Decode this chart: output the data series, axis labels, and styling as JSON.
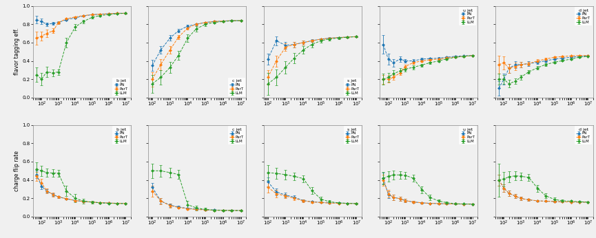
{
  "colors": {
    "PN": "#1f77b4",
    "ParT": "#ff7f0e",
    "LLM": "#2ca02c"
  },
  "series": [
    "PN",
    "ParT",
    "LLM"
  ],
  "col_labels": [
    "b jet",
    "c jet",
    "s jet",
    "u jet",
    "d jet"
  ],
  "row0_ylabel": "flavor tagging eff.",
  "row1_ylabel": "charge flip rate",
  "ylim": [
    0.0,
    1.0
  ],
  "yticks": [
    0.0,
    0.2,
    0.4,
    0.6,
    0.8,
    1.0
  ],
  "top_legend_locs": [
    "lower right",
    "lower right",
    "lower right",
    "upper right",
    "upper right"
  ],
  "bot_legend_locs": [
    "upper right",
    "upper right",
    "upper right",
    "upper right",
    "upper right"
  ],
  "top_data": {
    "b jet": {
      "x": [
        50,
        100,
        200,
        500,
        1000,
        3000,
        10000,
        30000,
        100000,
        300000,
        1000000,
        3000000,
        10000000
      ],
      "PN": [
        0.85,
        0.83,
        0.8,
        0.81,
        0.82,
        0.85,
        0.87,
        0.89,
        0.905,
        0.91,
        0.915,
        0.92,
        0.92
      ],
      "ParT": [
        0.65,
        0.67,
        0.7,
        0.73,
        0.82,
        0.86,
        0.88,
        0.895,
        0.905,
        0.91,
        0.915,
        0.92,
        0.92
      ],
      "LLM": [
        0.25,
        0.2,
        0.28,
        0.27,
        0.28,
        0.6,
        0.77,
        0.83,
        0.875,
        0.895,
        0.905,
        0.915,
        0.92
      ],
      "PN_err": [
        0.04,
        0.03,
        0.02,
        0.015,
        0.01,
        0.008,
        0.007,
        0.006,
        0.005,
        0.004,
        0.003,
        0.002,
        0.002
      ],
      "ParT_err": [
        0.07,
        0.05,
        0.04,
        0.025,
        0.015,
        0.01,
        0.008,
        0.007,
        0.005,
        0.004,
        0.003,
        0.002,
        0.002
      ],
      "LLM_err": [
        0.08,
        0.07,
        0.06,
        0.04,
        0.03,
        0.05,
        0.035,
        0.02,
        0.012,
        0.008,
        0.006,
        0.004,
        0.003
      ]
    },
    "c jet": {
      "x": [
        100,
        300,
        1000,
        3000,
        10000,
        30000,
        100000,
        300000,
        1000000,
        3000000,
        10000000
      ],
      "PN": [
        0.35,
        0.52,
        0.65,
        0.73,
        0.78,
        0.8,
        0.82,
        0.83,
        0.835,
        0.84,
        0.84
      ],
      "ParT": [
        0.2,
        0.36,
        0.52,
        0.66,
        0.76,
        0.8,
        0.82,
        0.83,
        0.835,
        0.84,
        0.84
      ],
      "LLM": [
        0.15,
        0.22,
        0.33,
        0.46,
        0.65,
        0.75,
        0.8,
        0.82,
        0.83,
        0.838,
        0.84
      ],
      "PN_err": [
        0.06,
        0.04,
        0.03,
        0.02,
        0.015,
        0.01,
        0.008,
        0.006,
        0.005,
        0.004,
        0.003
      ],
      "ParT_err": [
        0.08,
        0.06,
        0.04,
        0.025,
        0.018,
        0.012,
        0.008,
        0.006,
        0.005,
        0.004,
        0.003
      ],
      "LLM_err": [
        0.1,
        0.08,
        0.06,
        0.05,
        0.04,
        0.03,
        0.02,
        0.012,
        0.008,
        0.006,
        0.004
      ]
    },
    "s jet": {
      "x": [
        100,
        300,
        1000,
        3000,
        10000,
        30000,
        100000,
        300000,
        1000000,
        3000000,
        10000000
      ],
      "PN": [
        0.42,
        0.62,
        0.57,
        0.58,
        0.6,
        0.62,
        0.638,
        0.648,
        0.655,
        0.66,
        0.665
      ],
      "ParT": [
        0.22,
        0.4,
        0.55,
        0.58,
        0.6,
        0.62,
        0.638,
        0.648,
        0.655,
        0.66,
        0.665
      ],
      "LLM": [
        0.15,
        0.22,
        0.33,
        0.43,
        0.52,
        0.58,
        0.62,
        0.64,
        0.65,
        0.658,
        0.665
      ],
      "PN_err": [
        0.06,
        0.05,
        0.04,
        0.03,
        0.02,
        0.015,
        0.01,
        0.008,
        0.007,
        0.005,
        0.004
      ],
      "ParT_err": [
        0.08,
        0.06,
        0.04,
        0.03,
        0.02,
        0.012,
        0.009,
        0.007,
        0.006,
        0.005,
        0.003
      ],
      "LLM_err": [
        0.12,
        0.09,
        0.07,
        0.055,
        0.04,
        0.032,
        0.022,
        0.015,
        0.01,
        0.008,
        0.005
      ]
    },
    "u jet": {
      "x": [
        50,
        100,
        200,
        500,
        1000,
        3000,
        10000,
        30000,
        100000,
        300000,
        1000000,
        3000000,
        10000000
      ],
      "PN": [
        0.58,
        0.42,
        0.38,
        0.42,
        0.4,
        0.4,
        0.42,
        0.425,
        0.43,
        0.44,
        0.45,
        0.455,
        0.46
      ],
      "ParT": [
        0.2,
        0.2,
        0.22,
        0.27,
        0.34,
        0.38,
        0.4,
        0.412,
        0.42,
        0.432,
        0.442,
        0.45,
        0.458
      ],
      "LLM": [
        0.2,
        0.22,
        0.26,
        0.29,
        0.31,
        0.33,
        0.355,
        0.38,
        0.4,
        0.422,
        0.44,
        0.45,
        0.458
      ],
      "PN_err": [
        0.1,
        0.06,
        0.04,
        0.03,
        0.02,
        0.018,
        0.013,
        0.01,
        0.008,
        0.006,
        0.005,
        0.004,
        0.003
      ],
      "ParT_err": [
        0.05,
        0.04,
        0.03,
        0.025,
        0.018,
        0.015,
        0.011,
        0.008,
        0.007,
        0.005,
        0.004,
        0.003,
        0.003
      ],
      "LLM_err": [
        0.06,
        0.05,
        0.04,
        0.03,
        0.025,
        0.02,
        0.015,
        0.012,
        0.009,
        0.007,
        0.006,
        0.005,
        0.004
      ]
    },
    "d jet": {
      "x": [
        50,
        100,
        200,
        500,
        1000,
        3000,
        10000,
        30000,
        100000,
        300000,
        1000000,
        3000000,
        10000000
      ],
      "PN": [
        0.1,
        0.2,
        0.32,
        0.36,
        0.36,
        0.37,
        0.385,
        0.4,
        0.42,
        0.43,
        0.44,
        0.448,
        0.455
      ],
      "ParT": [
        0.36,
        0.38,
        0.32,
        0.34,
        0.36,
        0.37,
        0.4,
        0.42,
        0.44,
        0.448,
        0.455,
        0.458,
        0.46
      ],
      "LLM": [
        0.2,
        0.2,
        0.15,
        0.18,
        0.22,
        0.28,
        0.325,
        0.36,
        0.385,
        0.402,
        0.42,
        0.44,
        0.45
      ],
      "PN_err": [
        0.08,
        0.06,
        0.05,
        0.04,
        0.03,
        0.025,
        0.018,
        0.014,
        0.01,
        0.008,
        0.006,
        0.005,
        0.004
      ],
      "ParT_err": [
        0.1,
        0.07,
        0.05,
        0.038,
        0.028,
        0.022,
        0.016,
        0.012,
        0.009,
        0.007,
        0.005,
        0.004,
        0.003
      ],
      "LLM_err": [
        0.06,
        0.05,
        0.04,
        0.032,
        0.025,
        0.022,
        0.018,
        0.013,
        0.01,
        0.008,
        0.006,
        0.005,
        0.004
      ]
    }
  },
  "bot_data": {
    "b jet": {
      "x": [
        50,
        100,
        200,
        500,
        1000,
        3000,
        10000,
        30000,
        100000,
        300000,
        1000000,
        3000000,
        10000000
      ],
      "PN": [
        0.46,
        0.33,
        0.28,
        0.24,
        0.215,
        0.195,
        0.175,
        0.165,
        0.158,
        0.152,
        0.148,
        0.145,
        0.143
      ],
      "ParT": [
        0.44,
        0.37,
        0.28,
        0.24,
        0.215,
        0.195,
        0.175,
        0.165,
        0.158,
        0.152,
        0.148,
        0.145,
        0.143
      ],
      "LLM": [
        0.52,
        0.5,
        0.48,
        0.475,
        0.475,
        0.28,
        0.2,
        0.17,
        0.158,
        0.15,
        0.145,
        0.143,
        0.142
      ],
      "PN_err": [
        0.04,
        0.03,
        0.02,
        0.018,
        0.013,
        0.01,
        0.007,
        0.005,
        0.004,
        0.003,
        0.003,
        0.002,
        0.002
      ],
      "ParT_err": [
        0.05,
        0.04,
        0.025,
        0.02,
        0.013,
        0.01,
        0.007,
        0.005,
        0.004,
        0.003,
        0.003,
        0.002,
        0.002
      ],
      "LLM_err": [
        0.07,
        0.055,
        0.045,
        0.04,
        0.038,
        0.055,
        0.045,
        0.025,
        0.015,
        0.009,
        0.007,
        0.005,
        0.004
      ]
    },
    "c jet": {
      "x": [
        100,
        300,
        1000,
        3000,
        10000,
        30000,
        100000,
        300000,
        1000000,
        3000000,
        10000000
      ],
      "PN": [
        0.32,
        0.17,
        0.125,
        0.105,
        0.09,
        0.082,
        0.075,
        0.072,
        0.07,
        0.068,
        0.067
      ],
      "ParT": [
        0.28,
        0.17,
        0.12,
        0.1,
        0.085,
        0.078,
        0.073,
        0.07,
        0.068,
        0.067,
        0.066
      ],
      "LLM": [
        0.5,
        0.5,
        0.48,
        0.46,
        0.13,
        0.095,
        0.078,
        0.07,
        0.067,
        0.066,
        0.065
      ],
      "PN_err": [
        0.05,
        0.03,
        0.018,
        0.012,
        0.008,
        0.006,
        0.005,
        0.004,
        0.003,
        0.003,
        0.002
      ],
      "ParT_err": [
        0.06,
        0.035,
        0.02,
        0.014,
        0.009,
        0.007,
        0.005,
        0.004,
        0.003,
        0.003,
        0.002
      ],
      "LLM_err": [
        0.08,
        0.065,
        0.055,
        0.048,
        0.038,
        0.025,
        0.015,
        0.009,
        0.007,
        0.005,
        0.004
      ]
    },
    "s jet": {
      "x": [
        100,
        300,
        1000,
        3000,
        10000,
        30000,
        100000,
        300000,
        1000000,
        3000000,
        10000000
      ],
      "PN": [
        0.38,
        0.27,
        0.235,
        0.212,
        0.175,
        0.162,
        0.155,
        0.15,
        0.148,
        0.145,
        0.143
      ],
      "ParT": [
        0.32,
        0.25,
        0.225,
        0.2,
        0.172,
        0.16,
        0.153,
        0.148,
        0.145,
        0.143,
        0.142
      ],
      "LLM": [
        0.48,
        0.472,
        0.458,
        0.44,
        0.415,
        0.285,
        0.19,
        0.162,
        0.15,
        0.145,
        0.142
      ],
      "PN_err": [
        0.05,
        0.038,
        0.025,
        0.018,
        0.013,
        0.01,
        0.007,
        0.006,
        0.005,
        0.004,
        0.003
      ],
      "ParT_err": [
        0.06,
        0.04,
        0.025,
        0.018,
        0.012,
        0.009,
        0.007,
        0.005,
        0.004,
        0.003,
        0.003
      ],
      "LLM_err": [
        0.08,
        0.06,
        0.05,
        0.042,
        0.038,
        0.038,
        0.028,
        0.014,
        0.009,
        0.007,
        0.005
      ]
    },
    "u jet": {
      "x": [
        50,
        100,
        200,
        500,
        1000,
        3000,
        10000,
        30000,
        100000,
        300000,
        1000000,
        3000000,
        10000000
      ],
      "PN": [
        0.42,
        0.24,
        0.21,
        0.195,
        0.175,
        0.16,
        0.15,
        0.145,
        0.142,
        0.14,
        0.138,
        0.137,
        0.136
      ],
      "ParT": [
        0.4,
        0.25,
        0.21,
        0.195,
        0.175,
        0.16,
        0.15,
        0.145,
        0.142,
        0.14,
        0.138,
        0.137,
        0.136
      ],
      "LLM": [
        0.42,
        0.44,
        0.455,
        0.455,
        0.45,
        0.42,
        0.295,
        0.21,
        0.17,
        0.152,
        0.14,
        0.138,
        0.136
      ],
      "PN_err": [
        0.06,
        0.04,
        0.03,
        0.022,
        0.016,
        0.012,
        0.009,
        0.007,
        0.005,
        0.004,
        0.003,
        0.003,
        0.002
      ],
      "ParT_err": [
        0.06,
        0.04,
        0.03,
        0.022,
        0.016,
        0.012,
        0.009,
        0.007,
        0.005,
        0.004,
        0.003,
        0.003,
        0.002
      ],
      "LLM_err": [
        0.065,
        0.055,
        0.048,
        0.04,
        0.038,
        0.038,
        0.038,
        0.028,
        0.018,
        0.01,
        0.007,
        0.005,
        0.004
      ]
    },
    "d jet": {
      "x": [
        50,
        100,
        200,
        500,
        1000,
        3000,
        10000,
        30000,
        100000,
        300000,
        1000000,
        3000000,
        10000000
      ],
      "PN": [
        0.4,
        0.31,
        0.255,
        0.222,
        0.198,
        0.183,
        0.172,
        0.168,
        0.165,
        0.162,
        0.16,
        0.158,
        0.157
      ],
      "ParT": [
        0.4,
        0.31,
        0.255,
        0.222,
        0.198,
        0.183,
        0.172,
        0.168,
        0.165,
        0.162,
        0.16,
        0.158,
        0.157
      ],
      "LLM": [
        0.4,
        0.41,
        0.435,
        0.445,
        0.44,
        0.428,
        0.31,
        0.228,
        0.188,
        0.172,
        0.168,
        0.162,
        0.158
      ],
      "PN_err": [
        0.06,
        0.04,
        0.028,
        0.022,
        0.016,
        0.012,
        0.009,
        0.007,
        0.006,
        0.005,
        0.004,
        0.003,
        0.003
      ],
      "ParT_err": [
        0.06,
        0.04,
        0.028,
        0.022,
        0.016,
        0.012,
        0.009,
        0.007,
        0.006,
        0.005,
        0.004,
        0.003,
        0.003
      ],
      "LLM_err": [
        0.18,
        0.08,
        0.06,
        0.048,
        0.04,
        0.038,
        0.038,
        0.028,
        0.018,
        0.011,
        0.009,
        0.007,
        0.005
      ]
    }
  }
}
